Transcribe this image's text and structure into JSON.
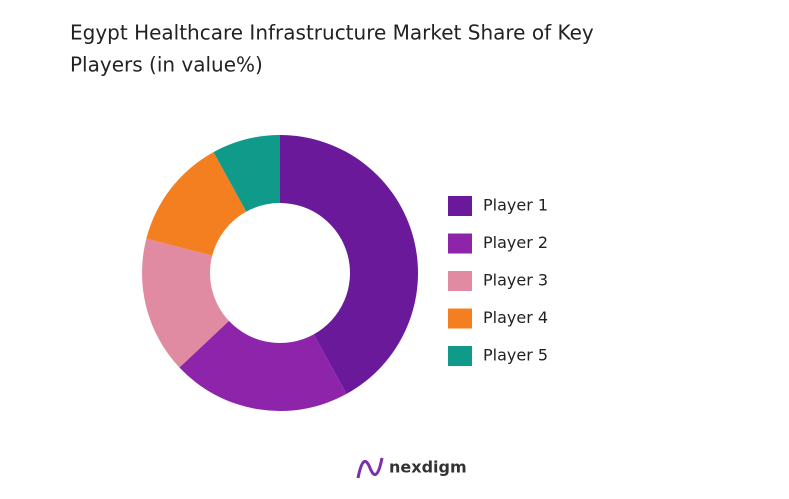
{
  "chart_data": {
    "type": "donut",
    "title": [
      "Egypt Healthcare Infrastructure Market Share of Key",
      "Players (in value%)"
    ],
    "categories": [
      "Player 1",
      "Player 2",
      "Player 3",
      "Player 4",
      "Player 5"
    ],
    "values": [
      42,
      21,
      16,
      13,
      8
    ],
    "colors": [
      "#69199a",
      "#8e24aa",
      "#e08ba2",
      "#f47f20",
      "#0f9a8a"
    ],
    "legend": "right"
  },
  "branding": "nexdigm"
}
